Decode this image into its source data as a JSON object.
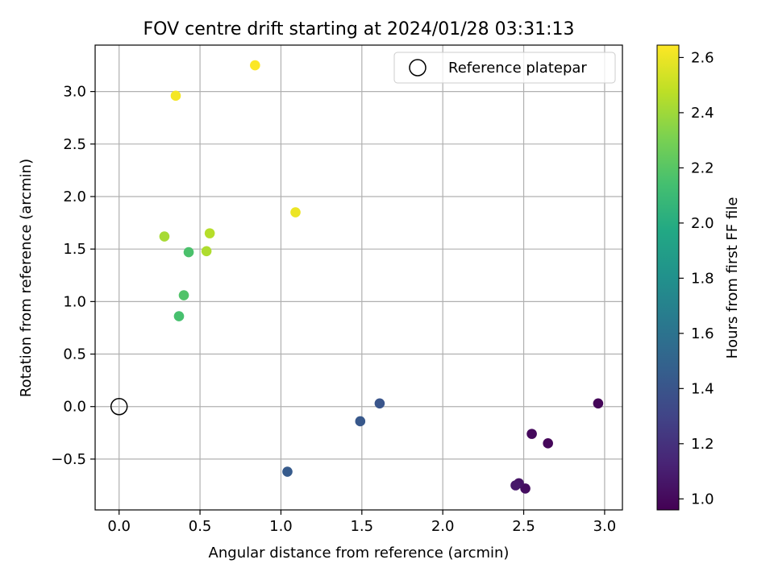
{
  "chart_data": {
    "type": "scatter",
    "title": "FOV centre drift starting at 2024/01/28 03:31:13",
    "xlabel": "Angular distance from reference (arcmin)",
    "ylabel": "Rotation from reference (arcmin)",
    "xlim": [
      -0.148,
      3.11
    ],
    "ylim": [
      -0.984,
      3.442
    ],
    "xticks": [
      0.0,
      0.5,
      1.0,
      1.5,
      2.0,
      2.5,
      3.0
    ],
    "xtick_labels": [
      "0.0",
      "0.5",
      "1.0",
      "1.5",
      "2.0",
      "2.5",
      "3.0"
    ],
    "yticks": [
      -0.5,
      0.0,
      0.5,
      1.0,
      1.5,
      2.0,
      2.5,
      3.0
    ],
    "ytick_labels": [
      "−0.5",
      "0.0",
      "0.5",
      "1.0",
      "1.5",
      "2.0",
      "2.5",
      "3.0"
    ],
    "grid": true,
    "legend": {
      "position": "upper-right",
      "label": "Reference platepar"
    },
    "reference_point": {
      "x": 0.0,
      "y": 0.0
    },
    "colorbar": {
      "label": "Hours from first FF file",
      "min": 0.96,
      "max": 2.645,
      "colormap": "viridis",
      "ticks": [
        1.0,
        1.2,
        1.4,
        1.6,
        1.8,
        2.0,
        2.2,
        2.4,
        2.6
      ],
      "tick_labels": [
        "1.0",
        "1.2",
        "1.4",
        "1.6",
        "1.8",
        "2.0",
        "2.2",
        "2.4",
        "2.6"
      ]
    },
    "points": [
      {
        "x": 2.96,
        "y": 0.03,
        "hours": 0.98
      },
      {
        "x": 2.65,
        "y": -0.35,
        "hours": 0.99
      },
      {
        "x": 2.55,
        "y": -0.26,
        "hours": 1.0
      },
      {
        "x": 2.51,
        "y": -0.78,
        "hours": 1.02
      },
      {
        "x": 2.47,
        "y": -0.73,
        "hours": 1.05
      },
      {
        "x": 2.45,
        "y": -0.75,
        "hours": 1.07
      },
      {
        "x": 1.61,
        "y": 0.03,
        "hours": 1.4
      },
      {
        "x": 1.49,
        "y": -0.14,
        "hours": 1.42
      },
      {
        "x": 1.04,
        "y": -0.62,
        "hours": 1.44
      },
      {
        "x": 0.37,
        "y": 0.86,
        "hours": 2.15
      },
      {
        "x": 0.4,
        "y": 1.06,
        "hours": 2.18
      },
      {
        "x": 0.43,
        "y": 1.47,
        "hours": 2.16
      },
      {
        "x": 0.28,
        "y": 1.62,
        "hours": 2.42
      },
      {
        "x": 0.54,
        "y": 1.48,
        "hours": 2.44
      },
      {
        "x": 0.56,
        "y": 1.65,
        "hours": 2.46
      },
      {
        "x": 1.09,
        "y": 1.85,
        "hours": 2.6
      },
      {
        "x": 0.35,
        "y": 2.96,
        "hours": 2.62
      },
      {
        "x": 0.84,
        "y": 3.25,
        "hours": 2.64
      }
    ]
  }
}
